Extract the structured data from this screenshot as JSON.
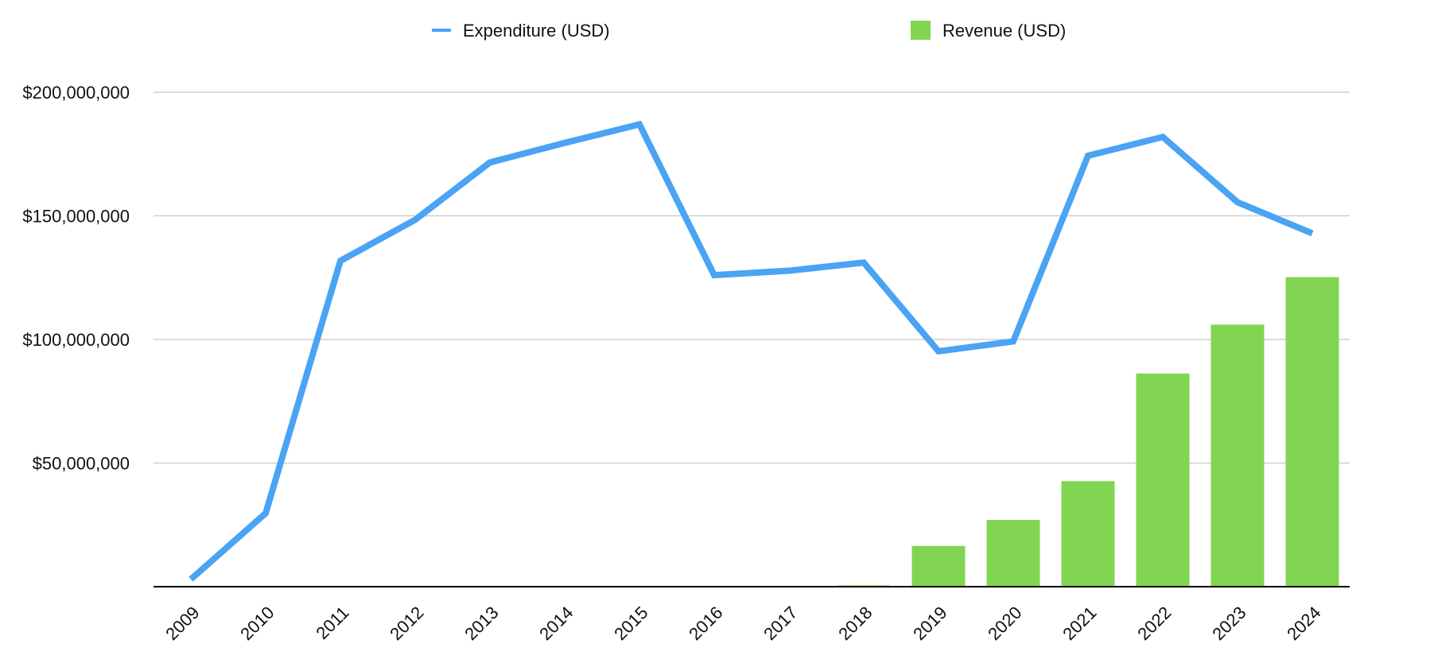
{
  "chart_data": {
    "type": "bar",
    "categories": [
      "2009",
      "2010",
      "2011",
      "2012",
      "2013",
      "2014",
      "2015",
      "2016",
      "2017",
      "2018",
      "2019",
      "2020",
      "2021",
      "2022",
      "2023",
      "2024"
    ],
    "series": [
      {
        "name": "Revenue (USD)",
        "type": "bar",
        "color": "#82d552",
        "values": [
          0,
          0,
          0,
          0,
          0,
          0,
          0,
          0,
          0,
          500000,
          16500000,
          27000000,
          42700000,
          86200000,
          106000000,
          125200000
        ]
      },
      {
        "name": "Expenditure (USD)",
        "type": "line",
        "color": "#4aa3f4",
        "values": [
          3000000,
          29700000,
          131800000,
          148400000,
          171600000,
          179500000,
          187000000,
          126000000,
          127800000,
          131100000,
          95200000,
          99200000,
          174300000,
          181900000,
          155500000,
          142900000
        ]
      }
    ],
    "ylim": [
      0,
      200000000
    ],
    "yticks": [
      {
        "value": 50000000,
        "label": "$50,000,000"
      },
      {
        "value": 100000000,
        "label": "$100,000,000"
      },
      {
        "value": 150000000,
        "label": "$150,000,000"
      },
      {
        "value": 200000000,
        "label": "$200,000,000"
      }
    ],
    "grid": true,
    "legend_position": "top",
    "title": "",
    "xlabel": "",
    "ylabel": ""
  }
}
